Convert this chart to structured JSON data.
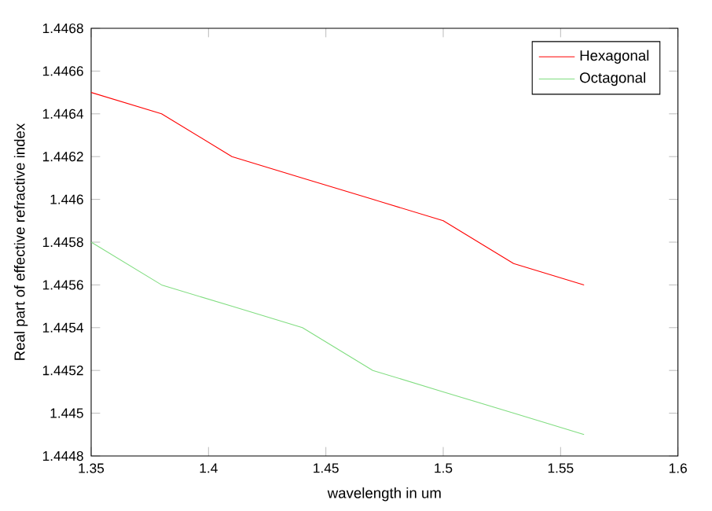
{
  "chart_data": {
    "type": "line",
    "xlabel": "wavelength in um",
    "ylabel": "Real part of effective refractive index",
    "x": [
      1.35,
      1.38,
      1.41,
      1.44,
      1.47,
      1.5,
      1.53,
      1.56
    ],
    "series": [
      {
        "name": "Hexagonal",
        "color": "#ff0000",
        "values": [
          1.4465,
          1.4464,
          1.4462,
          1.4461,
          1.446,
          1.4459,
          1.4457,
          1.4456
        ]
      },
      {
        "name": "Octagonal",
        "color": "#80dd80",
        "values": [
          1.4458,
          1.4456,
          1.4455,
          1.4454,
          1.4452,
          1.4451,
          1.445,
          1.4449
        ]
      }
    ],
    "xlim": [
      1.35,
      1.6
    ],
    "ylim": [
      1.4448,
      1.4468
    ],
    "xticks": [
      1.35,
      1.4,
      1.45,
      1.5,
      1.55,
      1.6
    ],
    "yticks": [
      1.4448,
      1.445,
      1.4452,
      1.4454,
      1.4456,
      1.4458,
      1.446,
      1.4462,
      1.4464,
      1.4466,
      1.4468
    ],
    "legend": "top right",
    "grid": false,
    "marker": "none",
    "line_style": "solid"
  }
}
